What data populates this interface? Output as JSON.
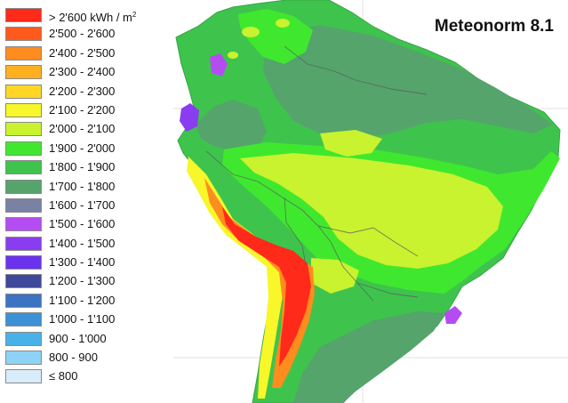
{
  "map": {
    "title": "Meteonorm 8.1",
    "legend": [
      {
        "label": "> 2'600 kWh / m",
        "sup": "2",
        "color": "#ff2a1a"
      },
      {
        "label": "2'500 - 2'600",
        "color": "#ff5a1c"
      },
      {
        "label": "2'400 - 2'500",
        "color": "#ff8c1e"
      },
      {
        "label": "2'300 - 2'400",
        "color": "#ffb020"
      },
      {
        "label": "2'200 - 2'300",
        "color": "#ffd626"
      },
      {
        "label": "2'100 - 2'200",
        "color": "#f7f72a"
      },
      {
        "label": "2'000 - 2'100",
        "color": "#c9f22f"
      },
      {
        "label": "1'900 - 2'000",
        "color": "#3fe82e"
      },
      {
        "label": "1'800 - 1'900",
        "color": "#3ec44c"
      },
      {
        "label": "1'700 - 1'800",
        "color": "#55a46c"
      },
      {
        "label": "1'600 - 1'700",
        "color": "#7a82a4"
      },
      {
        "label": "1'500 - 1'600",
        "color": "#b44cf2"
      },
      {
        "label": "1'400 - 1'500",
        "color": "#8a3cf0"
      },
      {
        "label": "1'300 - 1'400",
        "color": "#6a32ec"
      },
      {
        "label": "1'200 - 1'300",
        "color": "#40489c"
      },
      {
        "label": "1'100 - 1'200",
        "color": "#3c74c2"
      },
      {
        "label": "1'000 - 1'100",
        "color": "#3c90d6"
      },
      {
        "label": "900 - 1'000",
        "color": "#48b2e8"
      },
      {
        "label": "800 - 900",
        "color": "#8ed2f6"
      },
      {
        "label": "≤ 800",
        "color": "#d8ecfa"
      }
    ]
  }
}
